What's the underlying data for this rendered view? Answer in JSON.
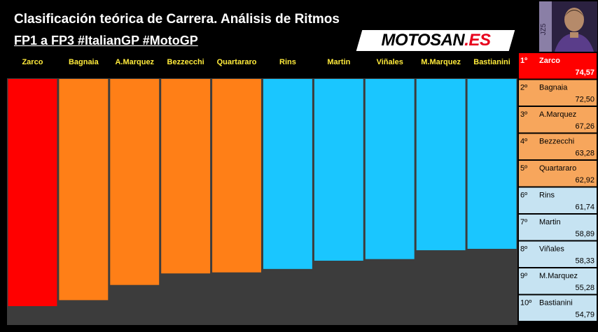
{
  "title": "Clasificación teórica de Carrera. Análisis de Ritmos",
  "subtitle": "FP1 a FP3 #ItalianGP #MotoGP",
  "logo": {
    "main": "MOTOSAN",
    "suffix": ".ES"
  },
  "avatar_icon": "rider-portrait-icon",
  "colors": {
    "first": "#ff0000",
    "orange": "#ff7f17",
    "blue": "#1ac6ff",
    "label": "#ffeb3b",
    "panel_background": "#3c3c3c",
    "ranking_orange": "#f7a65c",
    "ranking_blue": "#c6e3f2"
  },
  "chart_data": {
    "type": "bar",
    "categories": [
      "Zarco",
      "Bagnaia",
      "A.Marquez",
      "Bezzecchi",
      "Quartararo",
      "Rins",
      "Martin",
      "Viñales",
      "M.Marquez",
      "Bastianini"
    ],
    "values": [
      74.57,
      72.5,
      67.26,
      63.28,
      62.92,
      61.74,
      58.89,
      58.33,
      55.28,
      54.79
    ],
    "value_labels": [
      "74,57",
      "72,50",
      "67,26",
      "63,28",
      "62,92",
      "61,74",
      "58,89",
      "58,33",
      "55,28",
      "54,79"
    ],
    "groups": [
      "first",
      "orange",
      "orange",
      "orange",
      "orange",
      "blue",
      "blue",
      "blue",
      "blue",
      "blue"
    ],
    "ranks": [
      "1º",
      "2º",
      "3º",
      "4º",
      "5º",
      "6º",
      "7º",
      "8º",
      "9º",
      "10º"
    ],
    "title": "Clasificación teórica de Carrera. Análisis de Ritmos",
    "subtitle": "FP1 a FP3 #ItalianGP #MotoGP",
    "xlabel": "",
    "ylabel": "",
    "grid": false,
    "legend": "ranking table at right"
  }
}
